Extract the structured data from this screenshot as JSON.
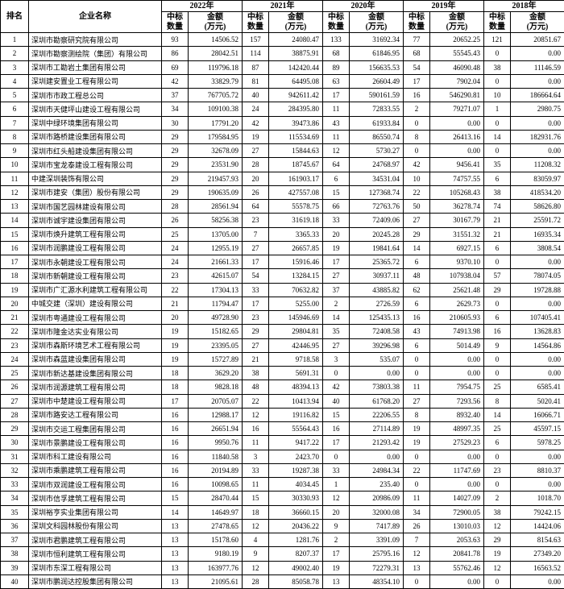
{
  "table": {
    "columns": {
      "rank_label": "排名",
      "company_label": "企业名称"
    },
    "years": [
      "2022年",
      "2021年",
      "2020年",
      "2019年",
      "2018年"
    ],
    "sub_headers": {
      "count_line1": "中标",
      "count_line2": "数量",
      "amount_line1": "金额",
      "amount_line2": "(万元)"
    },
    "rows": [
      {
        "rank": 1,
        "company": "深圳市勘察研究院有限公司",
        "values": [
          "93",
          "14506.52",
          "157",
          "24080.47",
          "133",
          "31692.34",
          "77",
          "20652.25",
          "121",
          "20851.67"
        ]
      },
      {
        "rank": 2,
        "company": "深圳市勘察测绘院（集团）有限公司",
        "values": [
          "86",
          "28042.51",
          "114",
          "38875.91",
          "68",
          "61846.95",
          "68",
          "55545.43",
          "0",
          "0.00"
        ]
      },
      {
        "rank": 3,
        "company": "深圳市工勘岩土集团有限公司",
        "values": [
          "69",
          "119796.18",
          "87",
          "142420.44",
          "89",
          "156635.53",
          "54",
          "46090.48",
          "38",
          "11146.59"
        ]
      },
      {
        "rank": 4,
        "company": "深圳建安置业工程有限公司",
        "values": [
          "42",
          "33829.79",
          "81",
          "64495.08",
          "63",
          "26604.49",
          "17",
          "7902.04",
          "0",
          "0.00"
        ]
      },
      {
        "rank": 5,
        "company": "深圳市市政工程总公司",
        "values": [
          "37",
          "767705.72",
          "40",
          "942611.42",
          "17",
          "590161.59",
          "16",
          "546290.81",
          "10",
          "186664.64"
        ]
      },
      {
        "rank": 6,
        "company": "深圳市天健坪山建设工程有限公司",
        "values": [
          "34",
          "109100.38",
          "24",
          "284395.80",
          "11",
          "72833.55",
          "2",
          "79271.07",
          "1",
          "2980.75"
        ]
      },
      {
        "rank": 7,
        "company": "深圳中绿环境集团有限公司",
        "values": [
          "30",
          "17791.20",
          "42",
          "39473.86",
          "43",
          "61933.84",
          "0",
          "0.00",
          "0",
          "0.00"
        ]
      },
      {
        "rank": 8,
        "company": "深圳市路桥建设集团有限公司",
        "values": [
          "29",
          "179584.95",
          "19",
          "115534.69",
          "11",
          "86550.74",
          "8",
          "26413.16",
          "14",
          "182931.76"
        ]
      },
      {
        "rank": 9,
        "company": "深圳市红头船建设集团有限公司",
        "values": [
          "29",
          "32678.09",
          "27",
          "15844.63",
          "12",
          "5730.27",
          "0",
          "0.00",
          "0",
          "0.00"
        ]
      },
      {
        "rank": 10,
        "company": "深圳市宝龙泰建设工程有限公司",
        "values": [
          "29",
          "23531.90",
          "28",
          "18745.67",
          "64",
          "24768.97",
          "42",
          "9456.41",
          "35",
          "11208.32"
        ]
      },
      {
        "rank": 11,
        "company": "中建深圳装饰有限公司",
        "values": [
          "29",
          "219457.93",
          "20",
          "161903.17",
          "6",
          "34531.04",
          "10",
          "74757.55",
          "6",
          "83059.97"
        ]
      },
      {
        "rank": 12,
        "company": "深圳市建安（集团）股份有限公司",
        "values": [
          "29",
          "190635.09",
          "26",
          "427557.08",
          "15",
          "127368.74",
          "22",
          "105268.43",
          "38",
          "418534.20"
        ]
      },
      {
        "rank": 13,
        "company": "深圳市国艺园林建设有限公司",
        "values": [
          "28",
          "28561.94",
          "64",
          "55578.75",
          "66",
          "72763.76",
          "50",
          "36278.74",
          "74",
          "58626.80"
        ]
      },
      {
        "rank": 14,
        "company": "深圳市诚宇建设集团有限公司",
        "values": [
          "26",
          "58256.38",
          "23",
          "31619.18",
          "33",
          "72409.06",
          "27",
          "30167.79",
          "21",
          "25591.72"
        ]
      },
      {
        "rank": 15,
        "company": "深圳市焕升建筑工程有限公司",
        "values": [
          "25",
          "13705.00",
          "7",
          "3365.33",
          "20",
          "20245.28",
          "29",
          "31551.32",
          "21",
          "16935.34"
        ]
      },
      {
        "rank": 16,
        "company": "深圳市润鹏建设工程有限公司",
        "values": [
          "24",
          "12955.19",
          "27",
          "26657.85",
          "19",
          "19841.64",
          "14",
          "6927.15",
          "6",
          "3808.54"
        ]
      },
      {
        "rank": 17,
        "company": "深圳市永朝建设工程有限公司",
        "values": [
          "24",
          "21661.33",
          "17",
          "15916.46",
          "17",
          "25365.72",
          "6",
          "9370.10",
          "0",
          "0.00"
        ]
      },
      {
        "rank": 18,
        "company": "深圳市新朝建设工程有限公司",
        "values": [
          "23",
          "42615.07",
          "54",
          "13284.15",
          "27",
          "30937.11",
          "48",
          "107938.04",
          "57",
          "78074.05"
        ]
      },
      {
        "rank": 19,
        "company": "深圳市广汇源水利建筑工程有限公司",
        "values": [
          "22",
          "17304.13",
          "33",
          "70632.82",
          "37",
          "43885.82",
          "62",
          "25621.48",
          "29",
          "19728.88"
        ]
      },
      {
        "rank": 20,
        "company": "中城交建（深圳）建设有限公司",
        "values": [
          "21",
          "11794.47",
          "17",
          "5255.00",
          "2",
          "2726.59",
          "6",
          "2629.73",
          "0",
          "0.00"
        ]
      },
      {
        "rank": 21,
        "company": "深圳市粤通建设工程有限公司",
        "values": [
          "20",
          "49728.90",
          "23",
          "145946.69",
          "14",
          "125435.13",
          "16",
          "210605.93",
          "6",
          "107405.41"
        ]
      },
      {
        "rank": 22,
        "company": "深圳市隆金达实业有限公司",
        "values": [
          "19",
          "15182.65",
          "29",
          "29804.81",
          "35",
          "72408.58",
          "43",
          "74913.98",
          "16",
          "13628.83"
        ]
      },
      {
        "rank": 23,
        "company": "深圳市森斯环境艺术工程有限公司",
        "values": [
          "19",
          "23395.05",
          "27",
          "42446.95",
          "27",
          "39296.98",
          "6",
          "5014.49",
          "9",
          "14564.86"
        ]
      },
      {
        "rank": 24,
        "company": "深圳市森蓝建设集团有限公司",
        "values": [
          "19",
          "15727.89",
          "21",
          "9718.58",
          "3",
          "535.07",
          "0",
          "0.00",
          "0",
          "0.00"
        ]
      },
      {
        "rank": 25,
        "company": "深圳市新达基建设集团有限公司",
        "values": [
          "18",
          "3629.20",
          "38",
          "5691.31",
          "0",
          "0.00",
          "0",
          "0.00",
          "0",
          "0.00"
        ]
      },
      {
        "rank": 26,
        "company": "深圳市润源建筑工程有限公司",
        "values": [
          "18",
          "9828.18",
          "48",
          "48394.13",
          "42",
          "73803.38",
          "11",
          "7954.75",
          "25",
          "6585.41"
        ]
      },
      {
        "rank": 27,
        "company": "深圳市中楚建设工程有限公司",
        "values": [
          "17",
          "20705.07",
          "22",
          "10413.94",
          "40",
          "61768.20",
          "27",
          "7293.56",
          "8",
          "5020.41"
        ]
      },
      {
        "rank": 28,
        "company": "深圳市路安达工程有限公司",
        "values": [
          "16",
          "12988.17",
          "12",
          "19116.82",
          "15",
          "22206.55",
          "8",
          "8932.40",
          "14",
          "16066.71"
        ]
      },
      {
        "rank": 29,
        "company": "深圳市交运工程集团有限公司",
        "values": [
          "16",
          "26651.94",
          "16",
          "55564.43",
          "16",
          "27114.89",
          "19",
          "48997.35",
          "25",
          "45597.15"
        ]
      },
      {
        "rank": 30,
        "company": "深圳市景鹏建设工程有限公司",
        "values": [
          "16",
          "9950.76",
          "11",
          "9417.22",
          "17",
          "21293.42",
          "19",
          "27529.23",
          "6",
          "5978.25"
        ]
      },
      {
        "rank": 31,
        "company": "深圳市科工建设有限公司",
        "values": [
          "16",
          "11840.58",
          "3",
          "2423.70",
          "0",
          "0.00",
          "0",
          "0.00",
          "0",
          "0.00"
        ]
      },
      {
        "rank": 32,
        "company": "深圳市乘鹏建筑工程有限公司",
        "values": [
          "16",
          "20194.89",
          "33",
          "19287.38",
          "33",
          "24984.34",
          "22",
          "11747.69",
          "23",
          "8810.37"
        ]
      },
      {
        "rank": 33,
        "company": "深圳市双润建设工程有限公司",
        "values": [
          "16",
          "10098.65",
          "11",
          "4034.45",
          "1",
          "235.40",
          "0",
          "0.00",
          "0",
          "0.00"
        ]
      },
      {
        "rank": 34,
        "company": "深圳市信孚建筑工程有限公司",
        "values": [
          "15",
          "28470.44",
          "15",
          "30330.93",
          "12",
          "20986.09",
          "11",
          "14027.09",
          "2",
          "1018.70"
        ]
      },
      {
        "rank": 35,
        "company": "深圳裕亨实业集团有限公司",
        "values": [
          "14",
          "14649.97",
          "18",
          "36660.15",
          "20",
          "32000.08",
          "34",
          "72900.05",
          "38",
          "79242.15"
        ]
      },
      {
        "rank": 36,
        "company": "深圳文科园林股份有限公司",
        "values": [
          "13",
          "27478.65",
          "12",
          "20436.22",
          "9",
          "7417.89",
          "26",
          "13010.03",
          "12",
          "14424.06"
        ]
      },
      {
        "rank": 37,
        "company": "深圳市君鹏建筑工程有限公司",
        "values": [
          "13",
          "15178.60",
          "4",
          "1281.76",
          "2",
          "3391.09",
          "7",
          "2053.63",
          "29",
          "8154.63"
        ]
      },
      {
        "rank": 38,
        "company": "深圳市恒利建筑工程有限公司",
        "values": [
          "13",
          "9180.19",
          "9",
          "8207.37",
          "17",
          "25795.16",
          "12",
          "20841.78",
          "19",
          "27349.20"
        ]
      },
      {
        "rank": 39,
        "company": "深圳市东深工程有限公司",
        "values": [
          "13",
          "163977.76",
          "12",
          "49002.40",
          "19",
          "72279.31",
          "13",
          "55762.46",
          "12",
          "16563.52"
        ]
      },
      {
        "rank": 40,
        "company": "深圳市鹏润达控股集团有限公司",
        "values": [
          "13",
          "21095.61",
          "28",
          "85058.78",
          "13",
          "48354.10",
          "0",
          "0.00",
          "0",
          "0.00"
        ]
      }
    ]
  },
  "colors": {
    "background": "#ffffff",
    "text": "#000000",
    "border": "#000000"
  }
}
